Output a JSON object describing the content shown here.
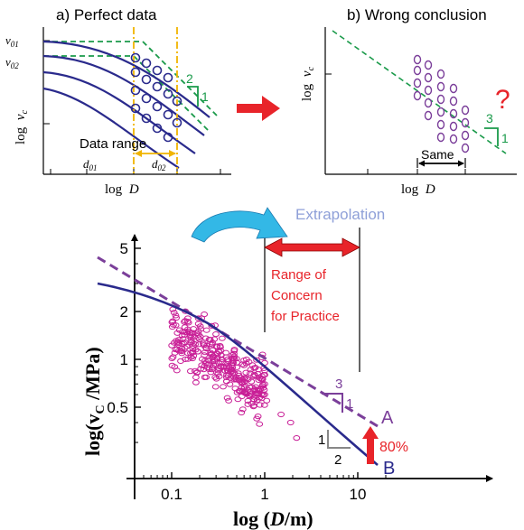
{
  "colors": {
    "navy": "#2a2a8c",
    "green": "#1a9a4a",
    "purple": "#7b3f9a",
    "magenta": "#c81e96",
    "orange": "#f0b400",
    "red": "#e8242a",
    "gray": "#888888",
    "cyan": "#33b8e6",
    "extrap": "#8fa0d8"
  },
  "panel_a": {
    "title": "a) Perfect data",
    "ylabel_log": "log",
    "ylabel_var": "v",
    "ylabel_sub": "c",
    "xlabel_log": "log",
    "xlabel_var": "D",
    "v01": "v",
    "v01_sub": "01",
    "v02": "v",
    "v02_sub": "02",
    "d01": "d",
    "d01_sub": "01",
    "d02": "d",
    "d02_sub": "02",
    "data_range": "Data range",
    "slope_run": "1",
    "slope_rise": "2"
  },
  "panel_b": {
    "title": "b) Wrong conclusion",
    "ylabel_log": "log",
    "ylabel_var": "v",
    "ylabel_sub": "c",
    "xlabel_log": "log",
    "xlabel_var": "D",
    "same": "Same",
    "slope_rise": "3",
    "slope_run": "1",
    "question": "?"
  },
  "main": {
    "extrapolation": "Extrapolation",
    "concern_line1": "Range of",
    "concern_line2": "Concern",
    "concern_line3": "for Practice",
    "label_A": "A",
    "label_B": "B",
    "pct": "80%",
    "slopeA_rise": "3",
    "slopeA_run": "1",
    "slopeB_rise": "1",
    "slopeB_run": "2"
  },
  "chart_data": [
    {
      "type": "line",
      "title": "a) Perfect data",
      "xlabel": "log D",
      "ylabel": "log vc",
      "series": [
        {
          "values": "four concave-down size-effect curves with circle data points inside the data range d01–d02"
        }
      ],
      "annotations": [
        "v01",
        "v02",
        "d01",
        "d02",
        "Data range",
        "2",
        "1"
      ]
    },
    {
      "type": "scatter",
      "title": "b) Wrong conclusion",
      "xlabel": "log D",
      "ylabel": "log vc",
      "annotations": [
        "Same",
        "3",
        "1",
        "?"
      ]
    },
    {
      "type": "scatter",
      "xlabel": "log (D/m)",
      "ylabel": "log(vC /MPa)",
      "x_scale": "log",
      "y_scale": "log",
      "xlim": [
        0.015,
        30
      ],
      "ylim": [
        0.18,
        6
      ],
      "xticks": [
        0.1,
        1,
        10
      ],
      "yticks": [
        0.5,
        1,
        2,
        5
      ],
      "lines": [
        {
          "name": "A",
          "style": "dashed",
          "x": [
            0.015,
            12
          ],
          "y": [
            3.2,
            0.37
          ]
        },
        {
          "name": "B",
          "style": "solid",
          "x": [
            0.015,
            16
          ],
          "y": [
            2.9,
            0.22
          ]
        }
      ],
      "scatter_x_range": [
        0.1,
        1.0
      ],
      "scatter_y_range": [
        0.35,
        4.5
      ],
      "range_of_concern_x": [
        1,
        10
      ],
      "annotations": [
        "Extrapolation",
        "Range of Concern for Practice",
        "3",
        "1",
        "1",
        "2",
        "80%"
      ]
    }
  ]
}
